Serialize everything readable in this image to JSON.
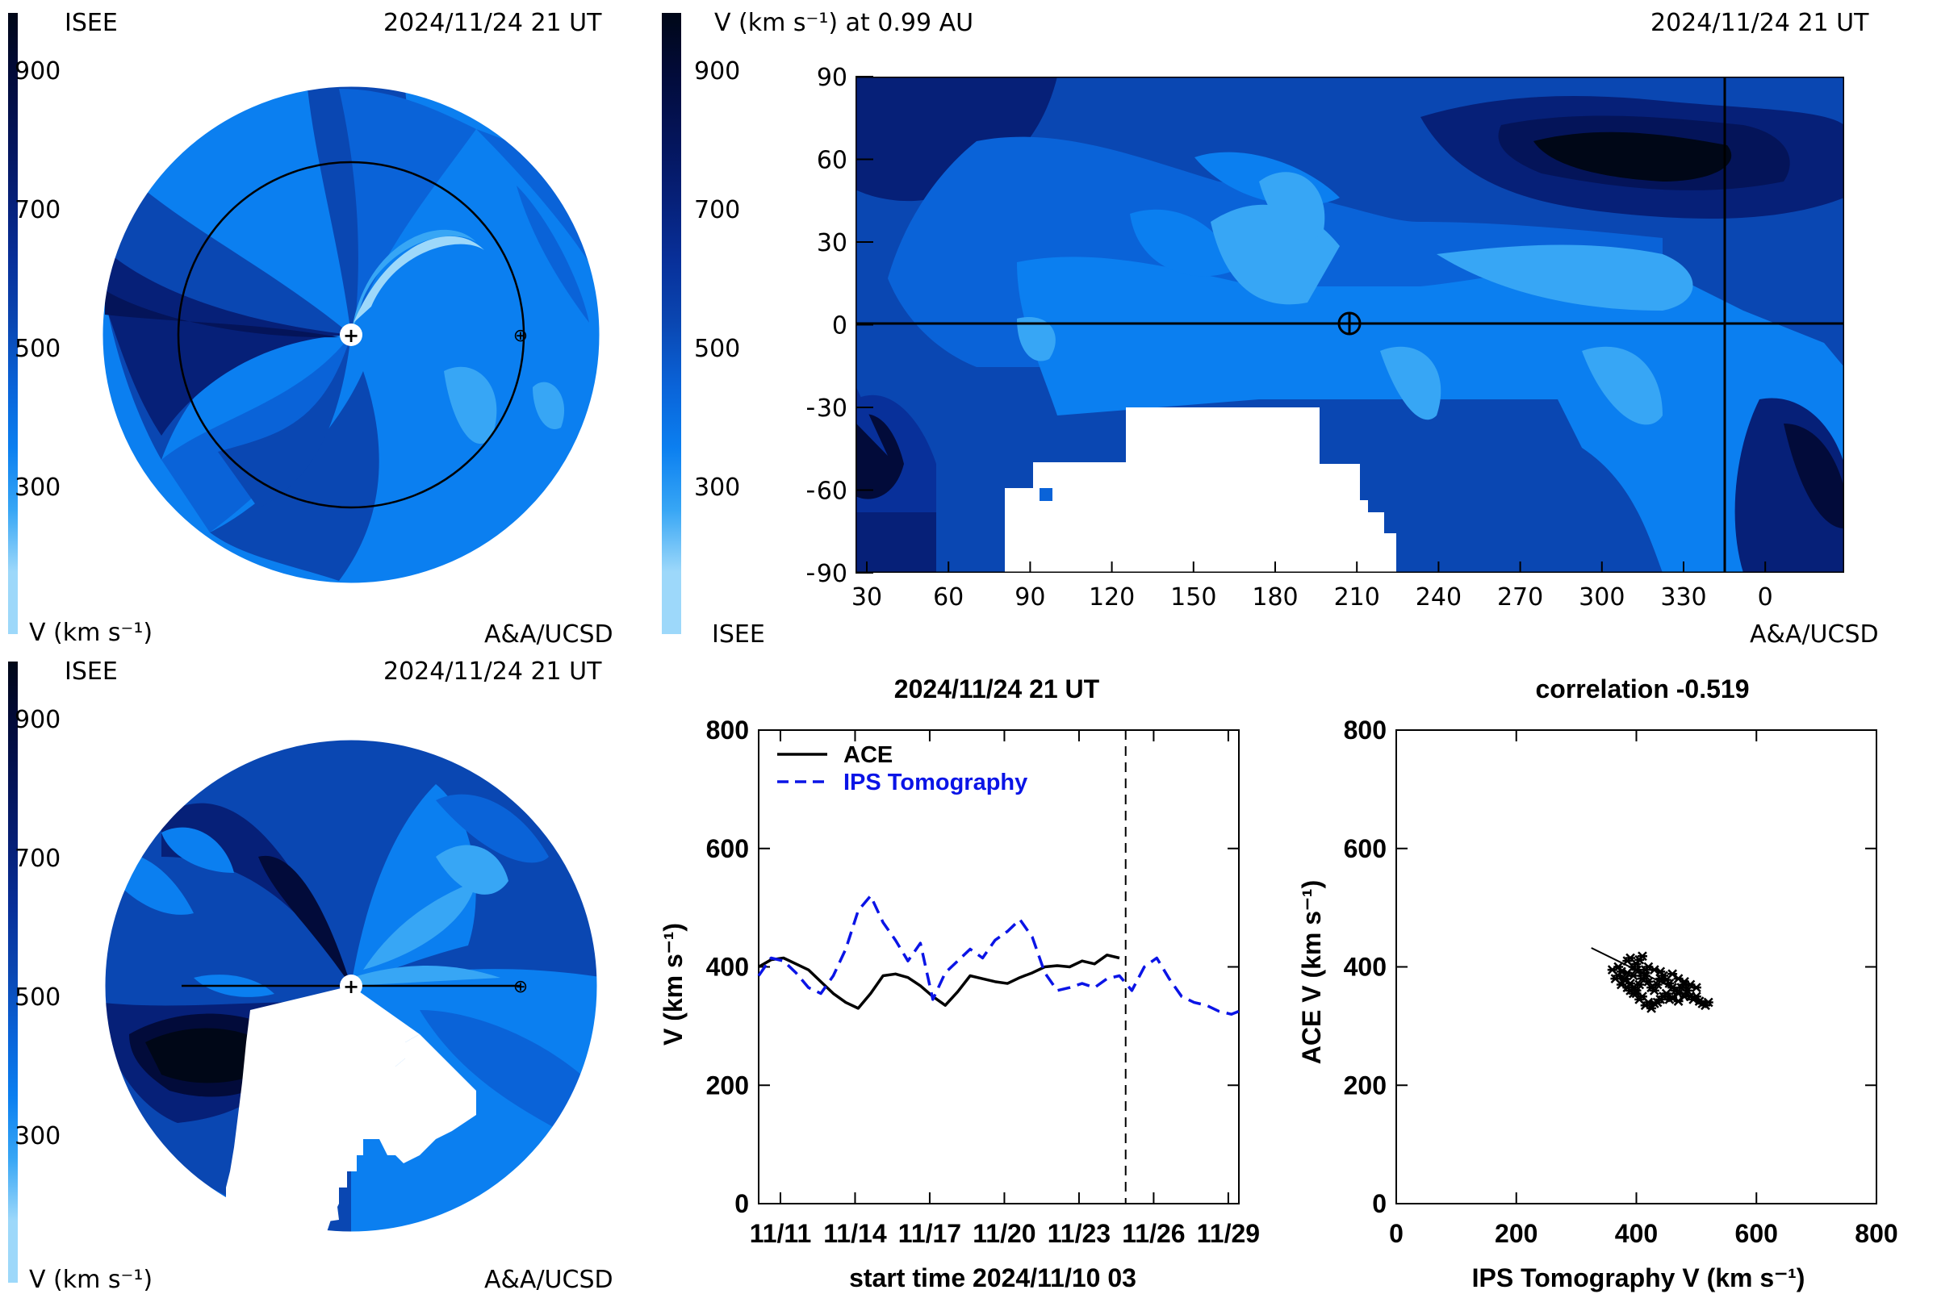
{
  "colors": {
    "levels": [
      "#9dd8fa",
      "#37a6f5",
      "#0b7ff0",
      "#0a63d8",
      "#0a47b2",
      "#08309a",
      "#062078",
      "#041459",
      "#020b3a",
      "#000717"
    ],
    "background": "#ffffff",
    "ace_line": "#000000",
    "ips_line": "#0a14e6"
  },
  "panel_top_left": {
    "org": "ISEE",
    "date": "2024/11/24 21 UT",
    "credit": "A&A/UCSD",
    "colorbar_label": "V (km s⁻¹)",
    "colorbar_ticks": [
      "900",
      "700",
      "500",
      "300"
    ],
    "earth_symbol": "⊕",
    "sun_symbol": "+"
  },
  "panel_top_right": {
    "colorbar_title": "V (km s⁻¹) at 0.99 AU",
    "date": "2024/11/24 21 UT",
    "org": "ISEE",
    "credit": "A&A/UCSD",
    "colorbar_ticks": [
      "900",
      "700",
      "500",
      "300"
    ],
    "lat_ticks": [
      "90",
      "60",
      "30",
      "0",
      "−30",
      "−60",
      "−90"
    ],
    "lon_ticks": [
      "30",
      "60",
      "90",
      "120",
      "150",
      "180",
      "210",
      "240",
      "270",
      "300",
      "330",
      "0"
    ],
    "earth_symbol": "⊕"
  },
  "panel_bottom_left": {
    "org": "ISEE",
    "date": "2024/11/24 21 UT",
    "credit": "A&A/UCSD",
    "colorbar_label": "V (km s⁻¹)",
    "colorbar_ticks": [
      "900",
      "700",
      "500",
      "300"
    ],
    "earth_symbol": "⊕",
    "sun_symbol": "+"
  },
  "chart_data": [
    {
      "type": "line",
      "title": "2024/11/24 21 UT",
      "xlabel": "start time 2024/11/10 03",
      "ylabel": "V (km s⁻¹)",
      "x_tick_labels": [
        "11/11",
        "11/14",
        "11/17",
        "11/20",
        "11/23",
        "11/26",
        "11/29"
      ],
      "x_tick_days": [
        0.875,
        3.875,
        6.875,
        9.875,
        12.875,
        15.875,
        18.875
      ],
      "y_ticks": [
        "0",
        "200",
        "400",
        "600",
        "800"
      ],
      "xlim_days": [
        0,
        19.3
      ],
      "ylim": [
        0,
        800
      ],
      "current_time_day": 14.75,
      "legend_position": "top-left",
      "series": [
        {
          "name": "ACE",
          "style": "solid",
          "x": [
            0,
            0.5,
            1,
            1.5,
            2,
            2.5,
            3,
            3.5,
            4,
            4.5,
            5,
            5.5,
            6,
            6.5,
            7,
            7.5,
            8,
            8.5,
            9,
            9.5,
            10,
            10.5,
            11,
            11.5,
            12,
            12.5,
            13,
            13.5,
            14,
            14.5
          ],
          "y": [
            400,
            412,
            415,
            405,
            395,
            375,
            355,
            340,
            330,
            355,
            385,
            388,
            382,
            368,
            350,
            335,
            358,
            385,
            380,
            375,
            372,
            382,
            390,
            400,
            402,
            400,
            410,
            405,
            420,
            415
          ]
        },
        {
          "name": "IPS Tomography",
          "style": "dashed",
          "x": [
            0,
            0.5,
            1,
            1.5,
            2,
            2.5,
            3,
            3.5,
            4,
            4.5,
            5,
            5.5,
            6,
            6.5,
            7,
            7.5,
            8,
            8.5,
            9,
            9.5,
            10,
            10.5,
            11,
            11.5,
            12,
            12.5,
            13,
            13.5,
            14,
            14.5,
            15,
            15.5,
            16,
            16.5,
            17,
            17.5,
            18,
            18.5,
            19,
            19.3
          ],
          "y": [
            385,
            415,
            410,
            390,
            365,
            355,
            385,
            430,
            495,
            520,
            475,
            445,
            410,
            440,
            345,
            390,
            410,
            430,
            415,
            445,
            460,
            480,
            450,
            390,
            360,
            365,
            372,
            365,
            380,
            385,
            360,
            400,
            415,
            380,
            350,
            340,
            335,
            325,
            320,
            325
          ]
        }
      ]
    },
    {
      "type": "scatter",
      "title": "correlation -0.519",
      "xlabel": "IPS Tomography V (km s⁻¹)",
      "ylabel": "ACE V (km s⁻¹)",
      "x_ticks": [
        "0",
        "200",
        "400",
        "600",
        "800"
      ],
      "y_ticks": [
        "0",
        "200",
        "400",
        "600",
        "800"
      ],
      "xlim": [
        0,
        800
      ],
      "ylim": [
        0,
        800
      ],
      "points": [
        [
          360,
          395
        ],
        [
          370,
          385
        ],
        [
          380,
          380
        ],
        [
          385,
          410
        ],
        [
          390,
          415
        ],
        [
          395,
          400
        ],
        [
          400,
          405
        ],
        [
          405,
          412
        ],
        [
          410,
          418
        ],
        [
          415,
          395
        ],
        [
          370,
          400
        ],
        [
          375,
          392
        ],
        [
          380,
          378
        ],
        [
          390,
          372
        ],
        [
          395,
          365
        ],
        [
          400,
          360
        ],
        [
          405,
          370
        ],
        [
          410,
          380
        ],
        [
          415,
          385
        ],
        [
          420,
          375
        ],
        [
          425,
          365
        ],
        [
          430,
          360
        ],
        [
          435,
          370
        ],
        [
          440,
          380
        ],
        [
          445,
          385
        ],
        [
          450,
          378
        ],
        [
          455,
          372
        ],
        [
          460,
          365
        ],
        [
          465,
          360
        ],
        [
          470,
          355
        ],
        [
          475,
          365
        ],
        [
          480,
          370
        ],
        [
          485,
          360
        ],
        [
          490,
          350
        ],
        [
          495,
          345
        ],
        [
          500,
          350
        ],
        [
          505,
          342
        ],
        [
          510,
          338
        ],
        [
          515,
          335
        ],
        [
          520,
          340
        ],
        [
          410,
          350
        ],
        [
          420,
          340
        ],
        [
          430,
          338
        ],
        [
          440,
          345
        ],
        [
          450,
          355
        ],
        [
          460,
          348
        ],
        [
          470,
          342
        ],
        [
          480,
          350
        ],
        [
          390,
          360
        ],
        [
          400,
          355
        ],
        [
          365,
          380
        ],
        [
          375,
          370
        ],
        [
          385,
          365
        ],
        [
          395,
          355
        ],
        [
          405,
          345
        ],
        [
          415,
          335
        ],
        [
          425,
          330
        ],
        [
          435,
          340
        ],
        [
          445,
          350
        ],
        [
          455,
          345
        ],
        [
          400,
          395
        ],
        [
          420,
          400
        ],
        [
          430,
          395
        ],
        [
          440,
          392
        ],
        [
          460,
          388
        ],
        [
          470,
          380
        ],
        [
          480,
          375
        ],
        [
          490,
          370
        ],
        [
          500,
          365
        ],
        [
          385,
          390
        ],
        [
          395,
          385
        ],
        [
          410,
          390
        ]
      ],
      "fit_line": {
        "x": [
          325,
          520
        ],
        "y": [
          432,
          335
        ]
      }
    }
  ]
}
